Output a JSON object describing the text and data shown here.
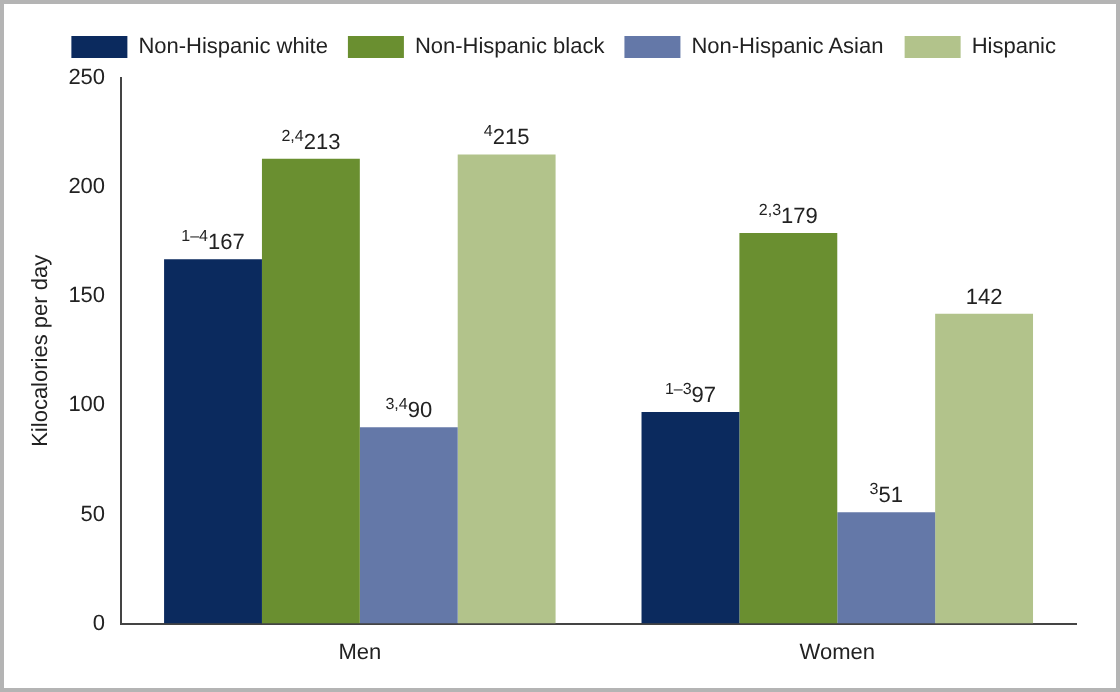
{
  "chart_data": {
    "type": "bar",
    "ylabel": "Kilocalories per day",
    "categories": [
      "Men",
      "Women"
    ],
    "series": [
      {
        "name": "Non-Hispanic white",
        "color": "#0b2a5e",
        "values": [
          167,
          97
        ],
        "value_labels": [
          "$^{1–4}$167",
          "$^{1–3}$97"
        ]
      },
      {
        "name": "Non-Hispanic black",
        "color": "#6a8f30",
        "values": [
          213,
          179
        ],
        "value_labels": [
          "$^{2,4}$213",
          "$^{2,3}$179"
        ]
      },
      {
        "name": "Non-Hispanic Asian",
        "color": "#6478a8",
        "values": [
          90,
          51
        ],
        "value_labels": [
          "$^{3,4}$90",
          "$^{3}$51"
        ]
      },
      {
        "name": "Hispanic",
        "color": "#b2c38b",
        "values": [
          215,
          142
        ],
        "value_labels": [
          "$^{4}$215",
          "142"
        ]
      }
    ],
    "ylim": [
      0,
      250
    ],
    "yticks": [
      0,
      50,
      100,
      150,
      200,
      250
    ],
    "grid": false,
    "legend": "top"
  }
}
